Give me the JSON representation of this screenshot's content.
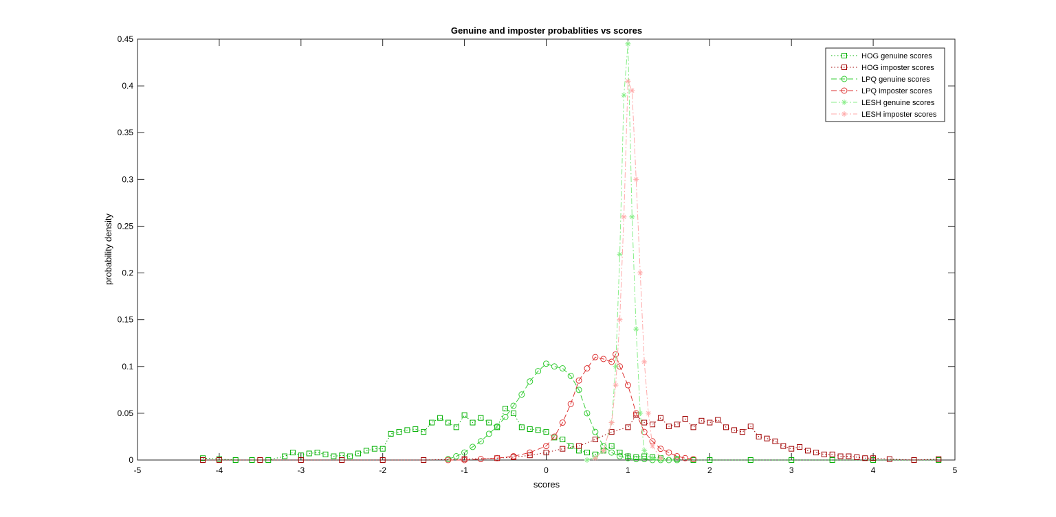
{
  "chart_data": {
    "type": "line",
    "title": "Genuine and imposter probablities vs scores",
    "xlabel": "scores",
    "ylabel": "probability density",
    "xlim": [
      -5,
      5
    ],
    "ylim": [
      0,
      0.45
    ],
    "x_ticks": [
      "-5",
      "-4",
      "-3",
      "-2",
      "-1",
      "0",
      "1",
      "2",
      "3",
      "4",
      "5"
    ],
    "y_ticks": [
      "0",
      "0.05",
      "0.1",
      "0.15",
      "0.2",
      "0.25",
      "0.3",
      "0.35",
      "0.4",
      "0.45"
    ],
    "grid": false,
    "legend_position": "top-right",
    "series": [
      {
        "name": "HOG genuine scores",
        "color": "#00b000",
        "line": "dotted",
        "marker": "square",
        "x": [
          -4.2,
          -4.0,
          -3.8,
          -3.6,
          -3.4,
          -3.2,
          -3.1,
          -3.0,
          -2.9,
          -2.8,
          -2.7,
          -2.6,
          -2.5,
          -2.4,
          -2.3,
          -2.2,
          -2.1,
          -2.0,
          -1.9,
          -1.8,
          -1.7,
          -1.6,
          -1.5,
          -1.4,
          -1.3,
          -1.2,
          -1.1,
          -1.0,
          -0.9,
          -0.8,
          -0.7,
          -0.6,
          -0.5,
          -0.4,
          -0.3,
          -0.2,
          -0.1,
          0.0,
          0.1,
          0.2,
          0.3,
          0.4,
          0.5,
          0.6,
          0.7,
          0.8,
          0.9,
          1.0,
          1.1,
          1.2,
          1.3,
          1.4,
          1.6,
          1.8,
          2.0,
          2.5,
          3.0,
          3.5,
          4.0,
          4.5,
          4.8
        ],
        "values": [
          0.002,
          0.001,
          0,
          0,
          0,
          0.004,
          0.008,
          0.005,
          0.007,
          0.008,
          0.006,
          0.004,
          0.005,
          0.004,
          0.007,
          0.01,
          0.012,
          0.012,
          0.028,
          0.03,
          0.032,
          0.033,
          0.03,
          0.04,
          0.045,
          0.04,
          0.035,
          0.048,
          0.04,
          0.045,
          0.04,
          0.035,
          0.055,
          0.05,
          0.035,
          0.033,
          0.032,
          0.03,
          0.024,
          0.022,
          0.015,
          0.01,
          0.008,
          0.006,
          0.01,
          0.015,
          0.008,
          0.004,
          0.003,
          0.004,
          0.003,
          0.002,
          0.001,
          0,
          0,
          0,
          0,
          0,
          0,
          0,
          0
        ]
      },
      {
        "name": "HOG imposter scores",
        "color": "#a00000",
        "line": "dotted",
        "marker": "square",
        "x": [
          -4.2,
          -4.0,
          -3.5,
          -3.0,
          -2.5,
          -2.0,
          -1.5,
          -1.0,
          -0.6,
          -0.4,
          -0.2,
          0.0,
          0.2,
          0.4,
          0.6,
          0.8,
          1.0,
          1.1,
          1.2,
          1.3,
          1.4,
          1.5,
          1.6,
          1.7,
          1.8,
          1.9,
          2.0,
          2.1,
          2.2,
          2.3,
          2.4,
          2.5,
          2.6,
          2.7,
          2.8,
          2.9,
          3.0,
          3.1,
          3.2,
          3.3,
          3.4,
          3.5,
          3.6,
          3.7,
          3.8,
          3.9,
          4.0,
          4.2,
          4.5,
          4.8
        ],
        "values": [
          0,
          0,
          0,
          0,
          0,
          0,
          0,
          0.001,
          0.002,
          0.003,
          0.005,
          0.008,
          0.012,
          0.015,
          0.022,
          0.03,
          0.035,
          0.048,
          0.04,
          0.038,
          0.045,
          0.036,
          0.038,
          0.044,
          0.035,
          0.042,
          0.04,
          0.043,
          0.035,
          0.032,
          0.03,
          0.036,
          0.025,
          0.023,
          0.02,
          0.015,
          0.012,
          0.014,
          0.01,
          0.008,
          0.006,
          0.006,
          0.004,
          0.004,
          0.003,
          0.002,
          0.002,
          0.001,
          0,
          0.001
        ]
      },
      {
        "name": "LPQ genuine scores",
        "color": "#33cc33",
        "line": "dashed",
        "marker": "circle",
        "x": [
          -1.2,
          -1.1,
          -1.0,
          -0.9,
          -0.8,
          -0.7,
          -0.6,
          -0.5,
          -0.4,
          -0.3,
          -0.2,
          -0.1,
          0.0,
          0.1,
          0.2,
          0.3,
          0.4,
          0.5,
          0.6,
          0.7,
          0.8,
          0.9,
          1.0,
          1.1,
          1.2,
          1.3,
          1.4,
          1.5,
          1.6
        ],
        "values": [
          0.001,
          0.004,
          0.008,
          0.014,
          0.02,
          0.028,
          0.036,
          0.046,
          0.058,
          0.07,
          0.084,
          0.095,
          0.103,
          0.1,
          0.098,
          0.09,
          0.075,
          0.05,
          0.03,
          0.015,
          0.008,
          0.004,
          0.002,
          0.001,
          0.001,
          0,
          0,
          0,
          0
        ]
      },
      {
        "name": "LPQ imposter scores",
        "color": "#dd3333",
        "line": "dashed",
        "marker": "circle",
        "x": [
          -1.2,
          -1.0,
          -0.8,
          -0.6,
          -0.4,
          -0.2,
          0.0,
          0.1,
          0.2,
          0.3,
          0.4,
          0.5,
          0.6,
          0.7,
          0.8,
          0.85,
          0.9,
          1.0,
          1.1,
          1.2,
          1.3,
          1.4,
          1.5,
          1.6,
          1.7,
          1.8
        ],
        "values": [
          0,
          0,
          0.001,
          0.002,
          0.004,
          0.008,
          0.015,
          0.025,
          0.04,
          0.06,
          0.085,
          0.098,
          0.11,
          0.108,
          0.105,
          0.113,
          0.1,
          0.08,
          0.05,
          0.03,
          0.02,
          0.012,
          0.008,
          0.004,
          0.002,
          0.001
        ]
      },
      {
        "name": "LESH genuine scores",
        "color": "#88ee88",
        "line": "dashdot",
        "marker": "star",
        "x": [
          0.5,
          0.6,
          0.7,
          0.8,
          0.85,
          0.9,
          0.95,
          1.0,
          1.05,
          1.1,
          1.15,
          1.2,
          1.3,
          1.4
        ],
        "values": [
          0,
          0.003,
          0.01,
          0.04,
          0.1,
          0.22,
          0.39,
          0.445,
          0.26,
          0.14,
          0.05,
          0.01,
          0.002,
          0
        ]
      },
      {
        "name": "LESH imposter scores",
        "color": "#ffaaaa",
        "line": "dashdot",
        "marker": "star",
        "x": [
          0.6,
          0.7,
          0.8,
          0.85,
          0.9,
          0.95,
          1.0,
          1.05,
          1.1,
          1.15,
          1.2,
          1.25,
          1.3,
          1.4
        ],
        "values": [
          0.002,
          0.01,
          0.04,
          0.08,
          0.15,
          0.26,
          0.405,
          0.395,
          0.3,
          0.2,
          0.105,
          0.05,
          0.015,
          0.002
        ]
      }
    ]
  }
}
